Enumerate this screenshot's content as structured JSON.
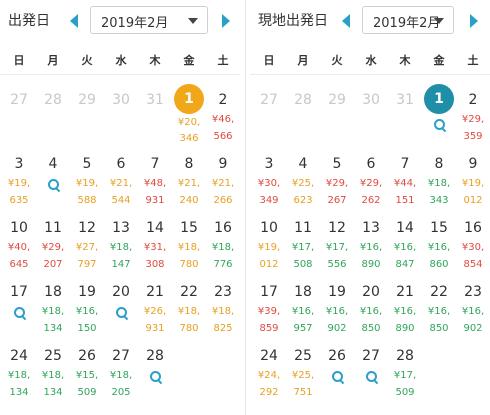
{
  "left": {
    "title": "出発日",
    "month_select": "2019年2月",
    "weekdays": [
      "日",
      "月",
      "火",
      "水",
      "木",
      "金",
      "土"
    ],
    "rows": [
      [
        {
          "d": "27",
          "past": true
        },
        {
          "d": "28",
          "past": true
        },
        {
          "d": "29",
          "past": true
        },
        {
          "d": "30",
          "past": true
        },
        {
          "d": "31",
          "past": true
        },
        {
          "d": "1",
          "sel": "gold",
          "p": [
            "¥20,",
            "346"
          ],
          "c": "orange"
        },
        {
          "d": "2",
          "p": [
            "¥46,",
            "566"
          ],
          "c": "red"
        }
      ],
      [
        {
          "d": "3",
          "p": [
            "¥19,",
            "635"
          ],
          "c": "orange"
        },
        {
          "d": "4",
          "search": true
        },
        {
          "d": "5",
          "p": [
            "¥19,",
            "588"
          ],
          "c": "orange"
        },
        {
          "d": "6",
          "p": [
            "¥21,",
            "544"
          ],
          "c": "orange"
        },
        {
          "d": "7",
          "p": [
            "¥48,",
            "931"
          ],
          "c": "red"
        },
        {
          "d": "8",
          "p": [
            "¥21,",
            "240"
          ],
          "c": "orange"
        },
        {
          "d": "9",
          "p": [
            "¥21,",
            "266"
          ],
          "c": "orange"
        }
      ],
      [
        {
          "d": "10",
          "p": [
            "¥40,",
            "645"
          ],
          "c": "red"
        },
        {
          "d": "11",
          "p": [
            "¥29,",
            "207"
          ],
          "c": "red"
        },
        {
          "d": "12",
          "p": [
            "¥27,",
            "797"
          ],
          "c": "orange"
        },
        {
          "d": "13",
          "p": [
            "¥18,",
            "147"
          ],
          "c": "green"
        },
        {
          "d": "14",
          "p": [
            "¥31,",
            "308"
          ],
          "c": "red"
        },
        {
          "d": "15",
          "p": [
            "¥18,",
            "780"
          ],
          "c": "orange"
        },
        {
          "d": "16",
          "p": [
            "¥18,",
            "776"
          ],
          "c": "green"
        }
      ],
      [
        {
          "d": "17",
          "search": true
        },
        {
          "d": "18",
          "p": [
            "¥18,",
            "134"
          ],
          "c": "green"
        },
        {
          "d": "19",
          "p": [
            "¥16,",
            "150"
          ],
          "c": "green"
        },
        {
          "d": "20",
          "search": true
        },
        {
          "d": "21",
          "p": [
            "¥26,",
            "931"
          ],
          "c": "orange"
        },
        {
          "d": "22",
          "p": [
            "¥18,",
            "780"
          ],
          "c": "orange"
        },
        {
          "d": "23",
          "p": [
            "¥18,",
            "825"
          ],
          "c": "orange"
        }
      ],
      [
        {
          "d": "24",
          "p": [
            "¥18,",
            "134"
          ],
          "c": "green"
        },
        {
          "d": "25",
          "p": [
            "¥18,",
            "134"
          ],
          "c": "green"
        },
        {
          "d": "26",
          "p": [
            "¥15,",
            "509"
          ],
          "c": "green"
        },
        {
          "d": "27",
          "p": [
            "¥18,",
            "205"
          ],
          "c": "green"
        },
        {
          "d": "28",
          "search": true
        },
        null,
        null
      ]
    ]
  },
  "right": {
    "title": "現地出発日",
    "month_select": "2019年2月",
    "weekdays": [
      "日",
      "月",
      "火",
      "水",
      "木",
      "金",
      "土"
    ],
    "rows": [
      [
        {
          "d": "27",
          "past": true
        },
        {
          "d": "28",
          "past": true
        },
        {
          "d": "29",
          "past": true
        },
        {
          "d": "30",
          "past": true
        },
        {
          "d": "31",
          "past": true
        },
        {
          "d": "1",
          "sel": "teal",
          "search": true
        },
        {
          "d": "2",
          "p": [
            "¥29,",
            "359"
          ],
          "c": "red"
        }
      ],
      [
        {
          "d": "3",
          "p": [
            "¥30,",
            "349"
          ],
          "c": "red"
        },
        {
          "d": "4",
          "p": [
            "¥25,",
            "623"
          ],
          "c": "orange"
        },
        {
          "d": "5",
          "p": [
            "¥29,",
            "267"
          ],
          "c": "red"
        },
        {
          "d": "6",
          "p": [
            "¥29,",
            "262"
          ],
          "c": "red"
        },
        {
          "d": "7",
          "p": [
            "¥44,",
            "151"
          ],
          "c": "red"
        },
        {
          "d": "8",
          "p": [
            "¥18,",
            "343"
          ],
          "c": "green"
        },
        {
          "d": "9",
          "p": [
            "¥19,",
            "012"
          ],
          "c": "orange"
        }
      ],
      [
        {
          "d": "10",
          "p": [
            "¥19,",
            "012"
          ],
          "c": "orange"
        },
        {
          "d": "11",
          "p": [
            "¥17,",
            "508"
          ],
          "c": "green"
        },
        {
          "d": "12",
          "p": [
            "¥17,",
            "556"
          ],
          "c": "green"
        },
        {
          "d": "13",
          "p": [
            "¥16,",
            "890"
          ],
          "c": "green"
        },
        {
          "d": "14",
          "p": [
            "¥16,",
            "847"
          ],
          "c": "green"
        },
        {
          "d": "15",
          "p": [
            "¥16,",
            "860"
          ],
          "c": "green"
        },
        {
          "d": "16",
          "p": [
            "¥30,",
            "854"
          ],
          "c": "red"
        }
      ],
      [
        {
          "d": "17",
          "p": [
            "¥39,",
            "859"
          ],
          "c": "red"
        },
        {
          "d": "18",
          "p": [
            "¥16,",
            "957"
          ],
          "c": "green"
        },
        {
          "d": "19",
          "p": [
            "¥16,",
            "902"
          ],
          "c": "green"
        },
        {
          "d": "20",
          "p": [
            "¥16,",
            "850"
          ],
          "c": "green"
        },
        {
          "d": "21",
          "p": [
            "¥16,",
            "890"
          ],
          "c": "green"
        },
        {
          "d": "22",
          "p": [
            "¥16,",
            "850"
          ],
          "c": "green"
        },
        {
          "d": "23",
          "p": [
            "¥16,",
            "902"
          ],
          "c": "green"
        }
      ],
      [
        {
          "d": "24",
          "p": [
            "¥24,",
            "292"
          ],
          "c": "orange"
        },
        {
          "d": "25",
          "p": [
            "¥25,",
            "751"
          ],
          "c": "orange"
        },
        {
          "d": "26",
          "search": true
        },
        {
          "d": "27",
          "search": true
        },
        {
          "d": "28",
          "p": [
            "¥17,",
            "509"
          ],
          "c": "green"
        },
        null,
        null
      ]
    ]
  },
  "colors": {
    "accent": "#2aa0c6",
    "selected_gold": "#f0a81a",
    "selected_teal": "#1f8ea8",
    "price_red": "#e04a3f",
    "price_orange": "#e8a020",
    "price_green": "#2fa55a"
  }
}
